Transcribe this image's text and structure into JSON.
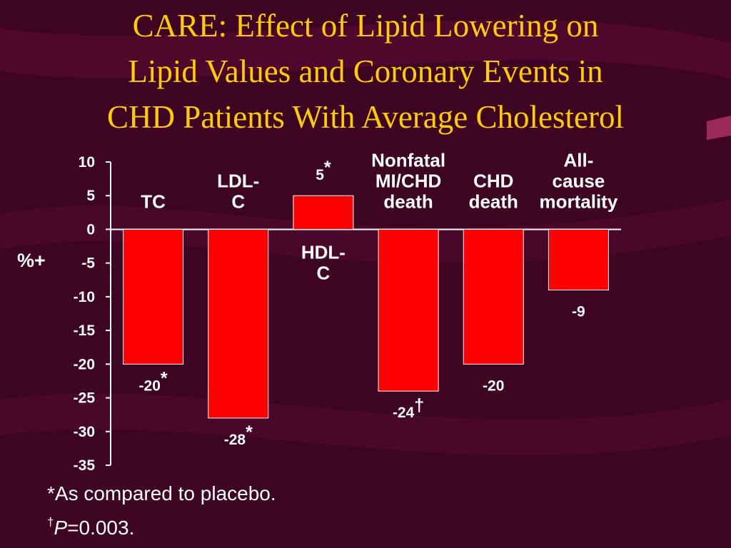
{
  "title_lines": [
    "CARE: Effect of Lipid Lowering on",
    "Lipid Values and Coronary Events in",
    "CHD Patients With Average Cholesterol"
  ],
  "colors": {
    "background": "#3d0522",
    "title": "#ffcc00",
    "bar": "#ff0000",
    "text": "#ffffff"
  },
  "chart_data": {
    "type": "bar",
    "ylabel": "%+",
    "ylim": [
      -35,
      10
    ],
    "yticks": [
      10,
      5,
      0,
      -5,
      -10,
      -15,
      -20,
      -25,
      -30,
      -35
    ],
    "grid": false,
    "categories": [
      {
        "label_lines": [
          "TC"
        ],
        "value": -20,
        "value_text": "-20",
        "mark": "*"
      },
      {
        "label_lines": [
          "LDL-",
          "C"
        ],
        "value": -28,
        "value_text": "-28",
        "mark": "*"
      },
      {
        "label_lines": [
          "HDL-",
          "C"
        ],
        "value": 5,
        "value_text": "5",
        "mark": "*"
      },
      {
        "label_lines": [
          "Nonfatal",
          "MI/CHD",
          "death"
        ],
        "value": -24,
        "value_text": "-24",
        "mark": "†"
      },
      {
        "label_lines": [
          "CHD",
          "death"
        ],
        "value": -20,
        "value_text": "-20",
        "mark": ""
      },
      {
        "label_lines": [
          "All-",
          "cause",
          "mortality"
        ],
        "value": -9,
        "value_text": "-9",
        "mark": ""
      }
    ]
  },
  "footnotes": {
    "line1": "*As compared to placebo.",
    "line2_mark": "†",
    "line2_p": "P",
    "line2_rest": "=0.003."
  }
}
